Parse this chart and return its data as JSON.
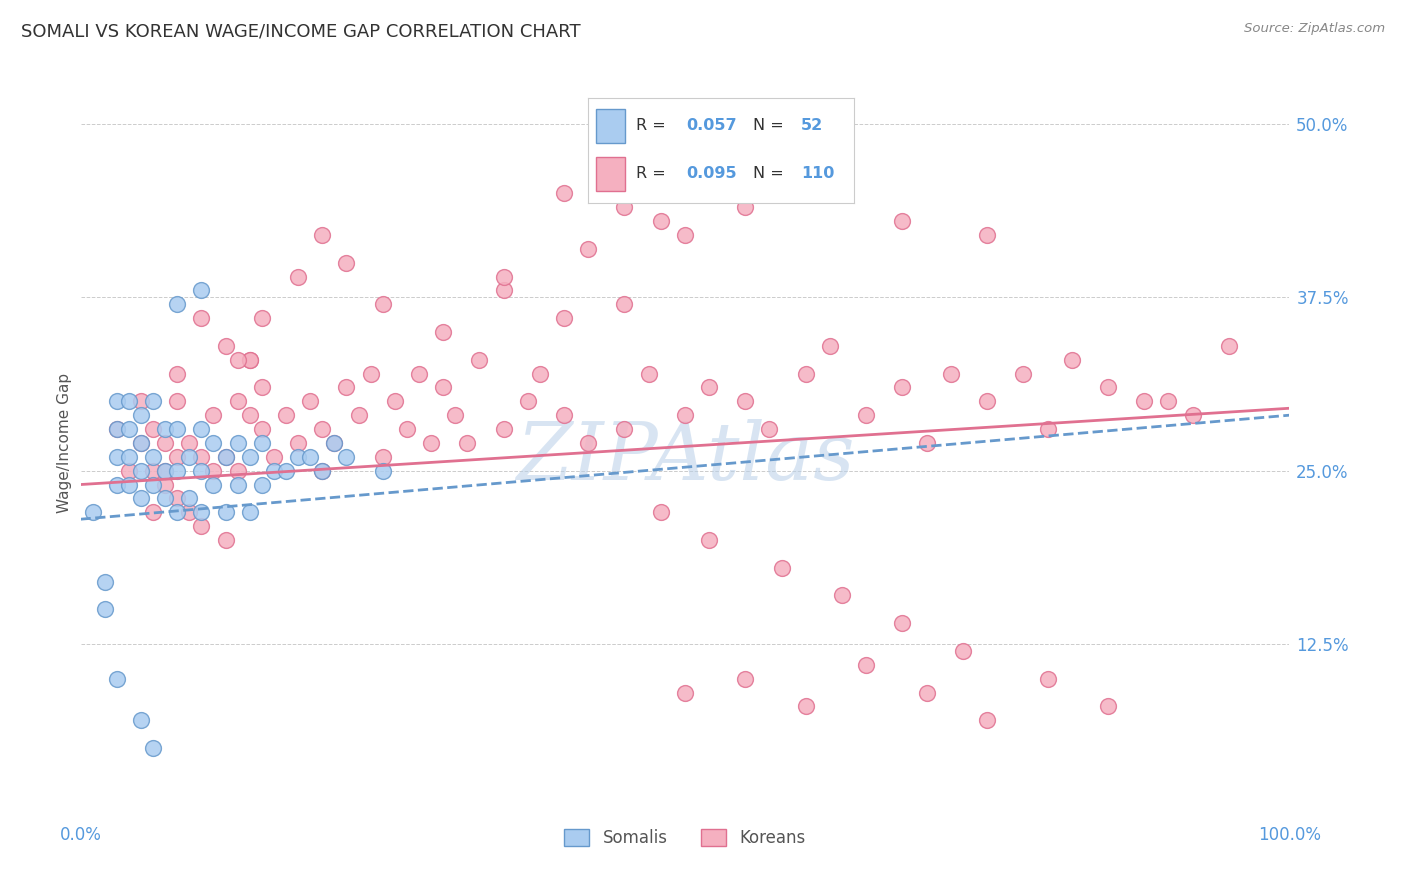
{
  "title": "SOMALI VS KOREAN WAGE/INCOME GAP CORRELATION CHART",
  "source": "Source: ZipAtlas.com",
  "ylabel": "Wage/Income Gap",
  "somali_R": 0.057,
  "somali_N": 52,
  "korean_R": 0.095,
  "korean_N": 110,
  "somali_color": "#aaccf0",
  "somali_edge_color": "#6699cc",
  "korean_color": "#f5b0c0",
  "korean_edge_color": "#e07090",
  "watermark": "ZIPAtlas",
  "watermark_color": "#b8cfe8",
  "title_color": "#555555",
  "axis_label_color": "#5599dd",
  "xmin": 0.0,
  "xmax": 1.0,
  "ymin": 0.0,
  "ymax": 0.54,
  "ytick_vals": [
    0.0,
    0.125,
    0.25,
    0.375,
    0.5
  ],
  "ytick_labels": [
    "",
    "12.5%",
    "25.0%",
    "37.5%",
    "50.0%"
  ],
  "xtick_vals": [
    0.0,
    0.2,
    0.4,
    0.6,
    0.8,
    1.0
  ],
  "xtick_labels": [
    "0.0%",
    "",
    "",
    "",
    "",
    "100.0%"
  ],
  "somali_trend": [
    0.215,
    0.29
  ],
  "korean_trend": [
    0.24,
    0.295
  ],
  "somali_x": [
    0.01,
    0.02,
    0.02,
    0.03,
    0.03,
    0.03,
    0.03,
    0.04,
    0.04,
    0.04,
    0.04,
    0.05,
    0.05,
    0.05,
    0.05,
    0.06,
    0.06,
    0.06,
    0.07,
    0.07,
    0.07,
    0.08,
    0.08,
    0.08,
    0.09,
    0.09,
    0.1,
    0.1,
    0.1,
    0.11,
    0.11,
    0.12,
    0.12,
    0.13,
    0.13,
    0.14,
    0.14,
    0.15,
    0.15,
    0.16,
    0.17,
    0.18,
    0.19,
    0.2,
    0.21,
    0.22,
    0.1,
    0.08,
    0.25,
    0.05,
    0.03,
    0.06
  ],
  "somali_y": [
    0.22,
    0.17,
    0.15,
    0.24,
    0.26,
    0.28,
    0.3,
    0.24,
    0.26,
    0.28,
    0.3,
    0.23,
    0.25,
    0.27,
    0.29,
    0.24,
    0.26,
    0.3,
    0.23,
    0.25,
    0.28,
    0.22,
    0.25,
    0.28,
    0.23,
    0.26,
    0.22,
    0.25,
    0.28,
    0.24,
    0.27,
    0.22,
    0.26,
    0.24,
    0.27,
    0.22,
    0.26,
    0.24,
    0.27,
    0.25,
    0.25,
    0.26,
    0.26,
    0.25,
    0.27,
    0.26,
    0.38,
    0.37,
    0.25,
    0.07,
    0.1,
    0.05
  ],
  "korean_x": [
    0.03,
    0.04,
    0.05,
    0.05,
    0.06,
    0.06,
    0.07,
    0.07,
    0.08,
    0.08,
    0.08,
    0.09,
    0.09,
    0.1,
    0.1,
    0.11,
    0.11,
    0.12,
    0.12,
    0.13,
    0.13,
    0.14,
    0.14,
    0.15,
    0.15,
    0.16,
    0.17,
    0.18,
    0.19,
    0.2,
    0.2,
    0.21,
    0.22,
    0.23,
    0.24,
    0.25,
    0.26,
    0.27,
    0.28,
    0.29,
    0.3,
    0.31,
    0.32,
    0.33,
    0.35,
    0.37,
    0.38,
    0.4,
    0.42,
    0.45,
    0.47,
    0.5,
    0.52,
    0.55,
    0.57,
    0.6,
    0.62,
    0.65,
    0.68,
    0.7,
    0.72,
    0.75,
    0.78,
    0.8,
    0.85,
    0.9,
    0.95,
    0.82,
    0.88,
    0.92,
    0.25,
    0.3,
    0.35,
    0.4,
    0.45,
    0.1,
    0.12,
    0.14,
    0.08,
    0.07,
    0.06,
    0.2,
    0.22,
    0.18,
    0.15,
    0.13,
    0.5,
    0.55,
    0.6,
    0.65,
    0.7,
    0.75,
    0.8,
    0.85,
    0.48,
    0.52,
    0.58,
    0.63,
    0.68,
    0.73,
    0.4,
    0.45,
    0.5,
    0.35,
    0.42,
    0.48,
    0.55,
    0.62,
    0.68,
    0.75
  ],
  "korean_y": [
    0.28,
    0.25,
    0.27,
    0.3,
    0.25,
    0.28,
    0.24,
    0.27,
    0.23,
    0.26,
    0.3,
    0.22,
    0.27,
    0.21,
    0.26,
    0.25,
    0.29,
    0.2,
    0.26,
    0.3,
    0.25,
    0.29,
    0.33,
    0.28,
    0.31,
    0.26,
    0.29,
    0.27,
    0.3,
    0.25,
    0.28,
    0.27,
    0.31,
    0.29,
    0.32,
    0.26,
    0.3,
    0.28,
    0.32,
    0.27,
    0.31,
    0.29,
    0.27,
    0.33,
    0.28,
    0.3,
    0.32,
    0.29,
    0.27,
    0.28,
    0.32,
    0.29,
    0.31,
    0.3,
    0.28,
    0.32,
    0.34,
    0.29,
    0.31,
    0.27,
    0.32,
    0.3,
    0.32,
    0.28,
    0.31,
    0.3,
    0.34,
    0.33,
    0.3,
    0.29,
    0.37,
    0.35,
    0.38,
    0.36,
    0.37,
    0.36,
    0.34,
    0.33,
    0.32,
    0.25,
    0.22,
    0.42,
    0.4,
    0.39,
    0.36,
    0.33,
    0.09,
    0.1,
    0.08,
    0.11,
    0.09,
    0.07,
    0.1,
    0.08,
    0.22,
    0.2,
    0.18,
    0.16,
    0.14,
    0.12,
    0.45,
    0.44,
    0.42,
    0.39,
    0.41,
    0.43,
    0.44,
    0.46,
    0.43,
    0.42
  ]
}
